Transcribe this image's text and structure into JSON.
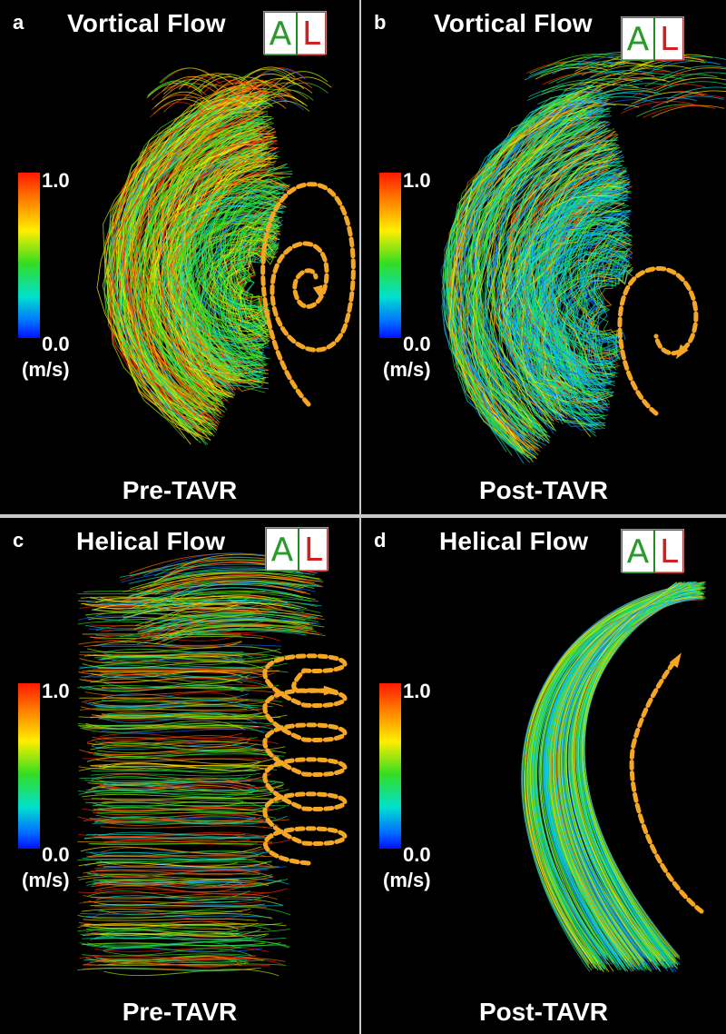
{
  "panels": [
    {
      "letter": "a",
      "title": "Vortical Flow",
      "caption": "Pre-TAVR",
      "flow_pattern": "vortical"
    },
    {
      "letter": "b",
      "title": "Vortical Flow",
      "caption": "Post-TAVR",
      "flow_pattern": "vortical"
    },
    {
      "letter": "c",
      "title": "Helical Flow",
      "caption": "Pre-TAVR",
      "flow_pattern": "helical"
    },
    {
      "letter": "d",
      "title": "Helical Flow",
      "caption": "Post-TAVR",
      "flow_pattern": "curved"
    }
  ],
  "orientation": {
    "anterior": "A",
    "left": "L"
  },
  "color_scale": {
    "max": "1.0",
    "min": "0.0",
    "unit": "(m/s)"
  },
  "colors": {
    "arrow": "#f5a623",
    "background": "#000000",
    "text": "#ffffff"
  }
}
